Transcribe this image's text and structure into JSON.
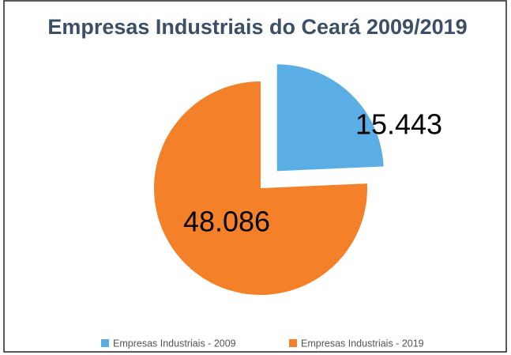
{
  "chart_data": {
    "type": "pie",
    "title": "Empresas Industriais do Ceará 2009/2019",
    "categories": [
      "Empresas Industriais - 2009",
      "Empresas Industriais - 2019"
    ],
    "values": [
      15443,
      48086
    ],
    "value_labels": [
      "15.443",
      "48.086"
    ],
    "colors": [
      "#5aaee3",
      "#f5802a"
    ],
    "legend": "bottom"
  }
}
